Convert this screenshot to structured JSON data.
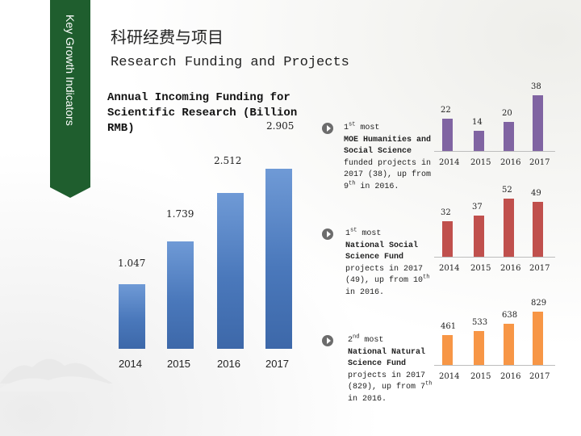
{
  "ribbon": {
    "label": "Key Growth Indicators",
    "color": "#1f5e2e"
  },
  "title_zh": "科研经费与项目",
  "title_en": "Research Funding and Projects",
  "chart_data": [
    {
      "type": "bar",
      "title": "Annual Incoming Funding for Scientific Research (Billion RMB)",
      "categories": [
        "2014",
        "2015",
        "2016",
        "2017"
      ],
      "values": [
        1.047,
        1.739,
        2.512,
        2.905
      ],
      "labels": [
        "1.047",
        "1.739",
        "2.512",
        "2.905"
      ],
      "color": "#4a78bb"
    },
    {
      "type": "bar",
      "categories": [
        "2014",
        "2015",
        "2016",
        "2017"
      ],
      "values": [
        22,
        14,
        20,
        38
      ],
      "labels": [
        "22",
        "14",
        "20",
        "38"
      ],
      "color": "#8064a2"
    },
    {
      "type": "bar",
      "categories": [
        "2014",
        "2015",
        "2016",
        "2017"
      ],
      "values": [
        32,
        37,
        52,
        49
      ],
      "labels": [
        "32",
        "37",
        "52",
        "49"
      ],
      "color": "#c0504d"
    },
    {
      "type": "bar",
      "categories": [
        "2014",
        "2015",
        "2016",
        "2017"
      ],
      "values": [
        461,
        533,
        638,
        829
      ],
      "labels": [
        "461",
        "533",
        "638",
        "829"
      ],
      "color": "#f79646"
    }
  ],
  "notes": [
    {
      "rank": "1",
      "sup": "st",
      "word": " most",
      "bold": "MOE Humanities and Social Science",
      "rest": " funded projects in 2017 (38), up from 9",
      "rest_sup": "th",
      "rest_end": " in 2016."
    },
    {
      "rank": "1",
      "sup": "st",
      "word": " most",
      "bold": "National Social Science Fund",
      "rest": " projects in 2017 (49), up from 10",
      "rest_sup": "th",
      "rest_end": " in 2016."
    },
    {
      "rank": "2",
      "sup": "nd",
      "word": "   most",
      "bold": "National Natural Science Fund",
      "rest": " projects in 2017 (829), up from 7",
      "rest_sup": "th",
      "rest_end": " in 2016."
    }
  ]
}
